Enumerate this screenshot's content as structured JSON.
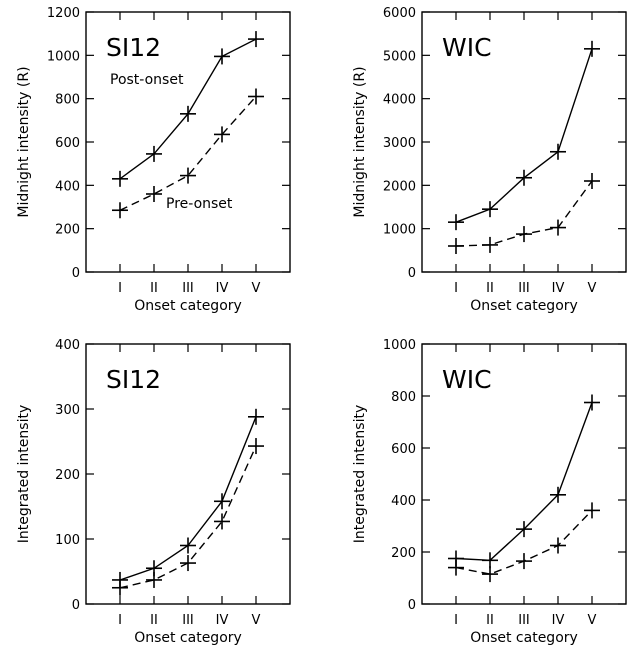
{
  "figure": {
    "colors": {
      "ink": "#000000",
      "background": "#ffffff"
    }
  },
  "chart_data": [
    {
      "type": "line",
      "panel_label": "SI12",
      "xlabel": "Onset category",
      "ylabel": "Midnight intensity (R)",
      "categories": [
        "I",
        "II",
        "III",
        "IV",
        "V"
      ],
      "ylim": [
        0,
        1200
      ],
      "yticks": [
        0,
        200,
        400,
        600,
        800,
        1000,
        1200
      ],
      "grid": false,
      "series": [
        {
          "name": "Post-onset",
          "style": "solid",
          "values": [
            430,
            545,
            730,
            995,
            1075
          ]
        },
        {
          "name": "Pre-onset",
          "style": "dashed",
          "values": [
            285,
            360,
            445,
            635,
            810
          ]
        }
      ],
      "annotations": [
        "Post-onset",
        "Pre-onset"
      ]
    },
    {
      "type": "line",
      "panel_label": "WIC",
      "xlabel": "Onset category",
      "ylabel": "Midnight intensity (R)",
      "categories": [
        "I",
        "II",
        "III",
        "IV",
        "V"
      ],
      "ylim": [
        0,
        6000
      ],
      "yticks": [
        0,
        1000,
        2000,
        3000,
        4000,
        5000,
        6000
      ],
      "grid": false,
      "series": [
        {
          "style": "solid",
          "values": [
            1150,
            1450,
            2175,
            2775,
            5150
          ]
        },
        {
          "style": "dashed",
          "values": [
            600,
            625,
            875,
            1025,
            2100
          ]
        }
      ],
      "annotations": []
    },
    {
      "type": "line",
      "panel_label": "SI12",
      "xlabel": "Onset category",
      "ylabel": "Integrated intensity",
      "categories": [
        "I",
        "II",
        "III",
        "IV",
        "V"
      ],
      "ylim": [
        0,
        400
      ],
      "yticks": [
        0,
        100,
        200,
        300,
        400
      ],
      "grid": false,
      "series": [
        {
          "style": "solid",
          "values": [
            37,
            55,
            90,
            158,
            288
          ]
        },
        {
          "style": "dashed",
          "values": [
            25,
            37,
            63,
            127,
            243
          ]
        }
      ],
      "annotations": []
    },
    {
      "type": "line",
      "panel_label": "WIC",
      "xlabel": "Onset category",
      "ylabel": "Integrated intensity",
      "categories": [
        "I",
        "II",
        "III",
        "IV",
        "V"
      ],
      "ylim": [
        0,
        1000
      ],
      "yticks": [
        0,
        200,
        400,
        600,
        800,
        1000
      ],
      "grid": false,
      "series": [
        {
          "style": "solid",
          "values": [
            175,
            168,
            288,
            420,
            775
          ]
        },
        {
          "style": "dashed",
          "values": [
            140,
            115,
            165,
            225,
            360
          ]
        }
      ],
      "annotations": []
    }
  ]
}
